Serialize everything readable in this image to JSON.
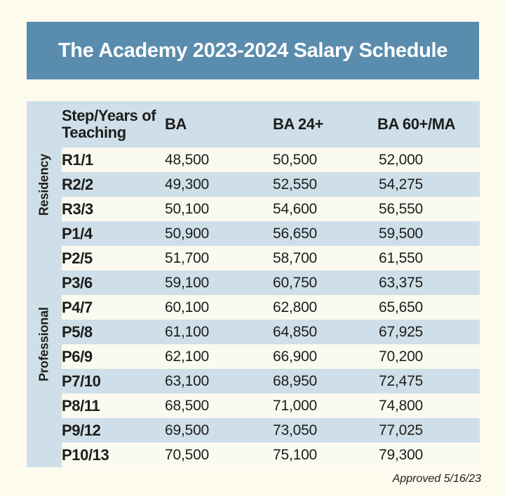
{
  "banner": {
    "title": "The Academy 2023-2024 Salary Schedule"
  },
  "table": {
    "columns": [
      "Step/Years of Teaching",
      "BA",
      "BA 24+",
      "BA 60+/MA"
    ],
    "groups": [
      {
        "label": "Residency",
        "row_count": 3
      },
      {
        "label": "Professional",
        "row_count": 10
      }
    ],
    "rows": [
      {
        "step": "R1/1",
        "values": [
          "48,500",
          "50,500",
          "52,000"
        ]
      },
      {
        "step": "R2/2",
        "values": [
          "49,300",
          "52,550",
          "54,275"
        ]
      },
      {
        "step": "R3/3",
        "values": [
          "50,100",
          "54,600",
          "56,550"
        ]
      },
      {
        "step": "P1/4",
        "values": [
          "50,900",
          "56,650",
          "59,500"
        ]
      },
      {
        "step": "P2/5",
        "values": [
          "51,700",
          "58,700",
          "61,550"
        ]
      },
      {
        "step": "P3/6",
        "values": [
          "59,100",
          "60,750",
          "63,375"
        ]
      },
      {
        "step": "P4/7",
        "values": [
          "60,100",
          "62,800",
          "65,650"
        ]
      },
      {
        "step": "P5/8",
        "values": [
          "61,100",
          "64,850",
          "67,925"
        ]
      },
      {
        "step": "P6/9",
        "values": [
          "62,100",
          "66,900",
          "70,200"
        ]
      },
      {
        "step": "P7/10",
        "values": [
          "63,100",
          "68,950",
          "72,475"
        ]
      },
      {
        "step": "P8/11",
        "values": [
          "68,500",
          "71,000",
          "74,800"
        ]
      },
      {
        "step": "P9/12",
        "values": [
          "69,500",
          "73,050",
          "77,025"
        ]
      },
      {
        "step": "P10/13",
        "values": [
          "70,500",
          "75,100",
          "79,300"
        ]
      }
    ]
  },
  "chart_data": {
    "type": "table",
    "title": "The Academy 2023-2024 Salary Schedule",
    "columns": [
      "Step/Years of Teaching",
      "BA",
      "BA 24+",
      "BA 60+/MA"
    ],
    "rows": [
      [
        "R1/1",
        48500,
        50500,
        52000
      ],
      [
        "R2/2",
        49300,
        52550,
        54275
      ],
      [
        "R3/3",
        50100,
        54600,
        56550
      ],
      [
        "P1/4",
        50900,
        56650,
        59500
      ],
      [
        "P2/5",
        51700,
        58700,
        61550
      ],
      [
        "P3/6",
        59100,
        60750,
        63375
      ],
      [
        "P4/7",
        60100,
        62800,
        65650
      ],
      [
        "P5/8",
        61100,
        64850,
        67925
      ],
      [
        "P6/9",
        62100,
        66900,
        70200
      ],
      [
        "P7/10",
        63100,
        68950,
        72475
      ],
      [
        "P8/11",
        68500,
        71000,
        74800
      ],
      [
        "P9/12",
        69500,
        73050,
        77025
      ],
      [
        "P10/13",
        70500,
        75100,
        79300
      ]
    ],
    "row_groups": {
      "Residency": [
        "R1/1",
        "R2/2",
        "R3/3"
      ],
      "Professional": [
        "P1/4",
        "P2/5",
        "P3/6",
        "P4/7",
        "P5/8",
        "P6/9",
        "P7/10",
        "P8/11",
        "P9/12",
        "P10/13"
      ]
    }
  },
  "footer": {
    "approved": "Approved 5/16/23"
  },
  "colors": {
    "page_bg": "#fdfbee",
    "banner_bg": "#5a8cad",
    "panel_bg": "#cfdfe9",
    "row_alt_bg": "#fbfaf0",
    "text": "#1d1d1b",
    "title_text": "#ffffff"
  }
}
